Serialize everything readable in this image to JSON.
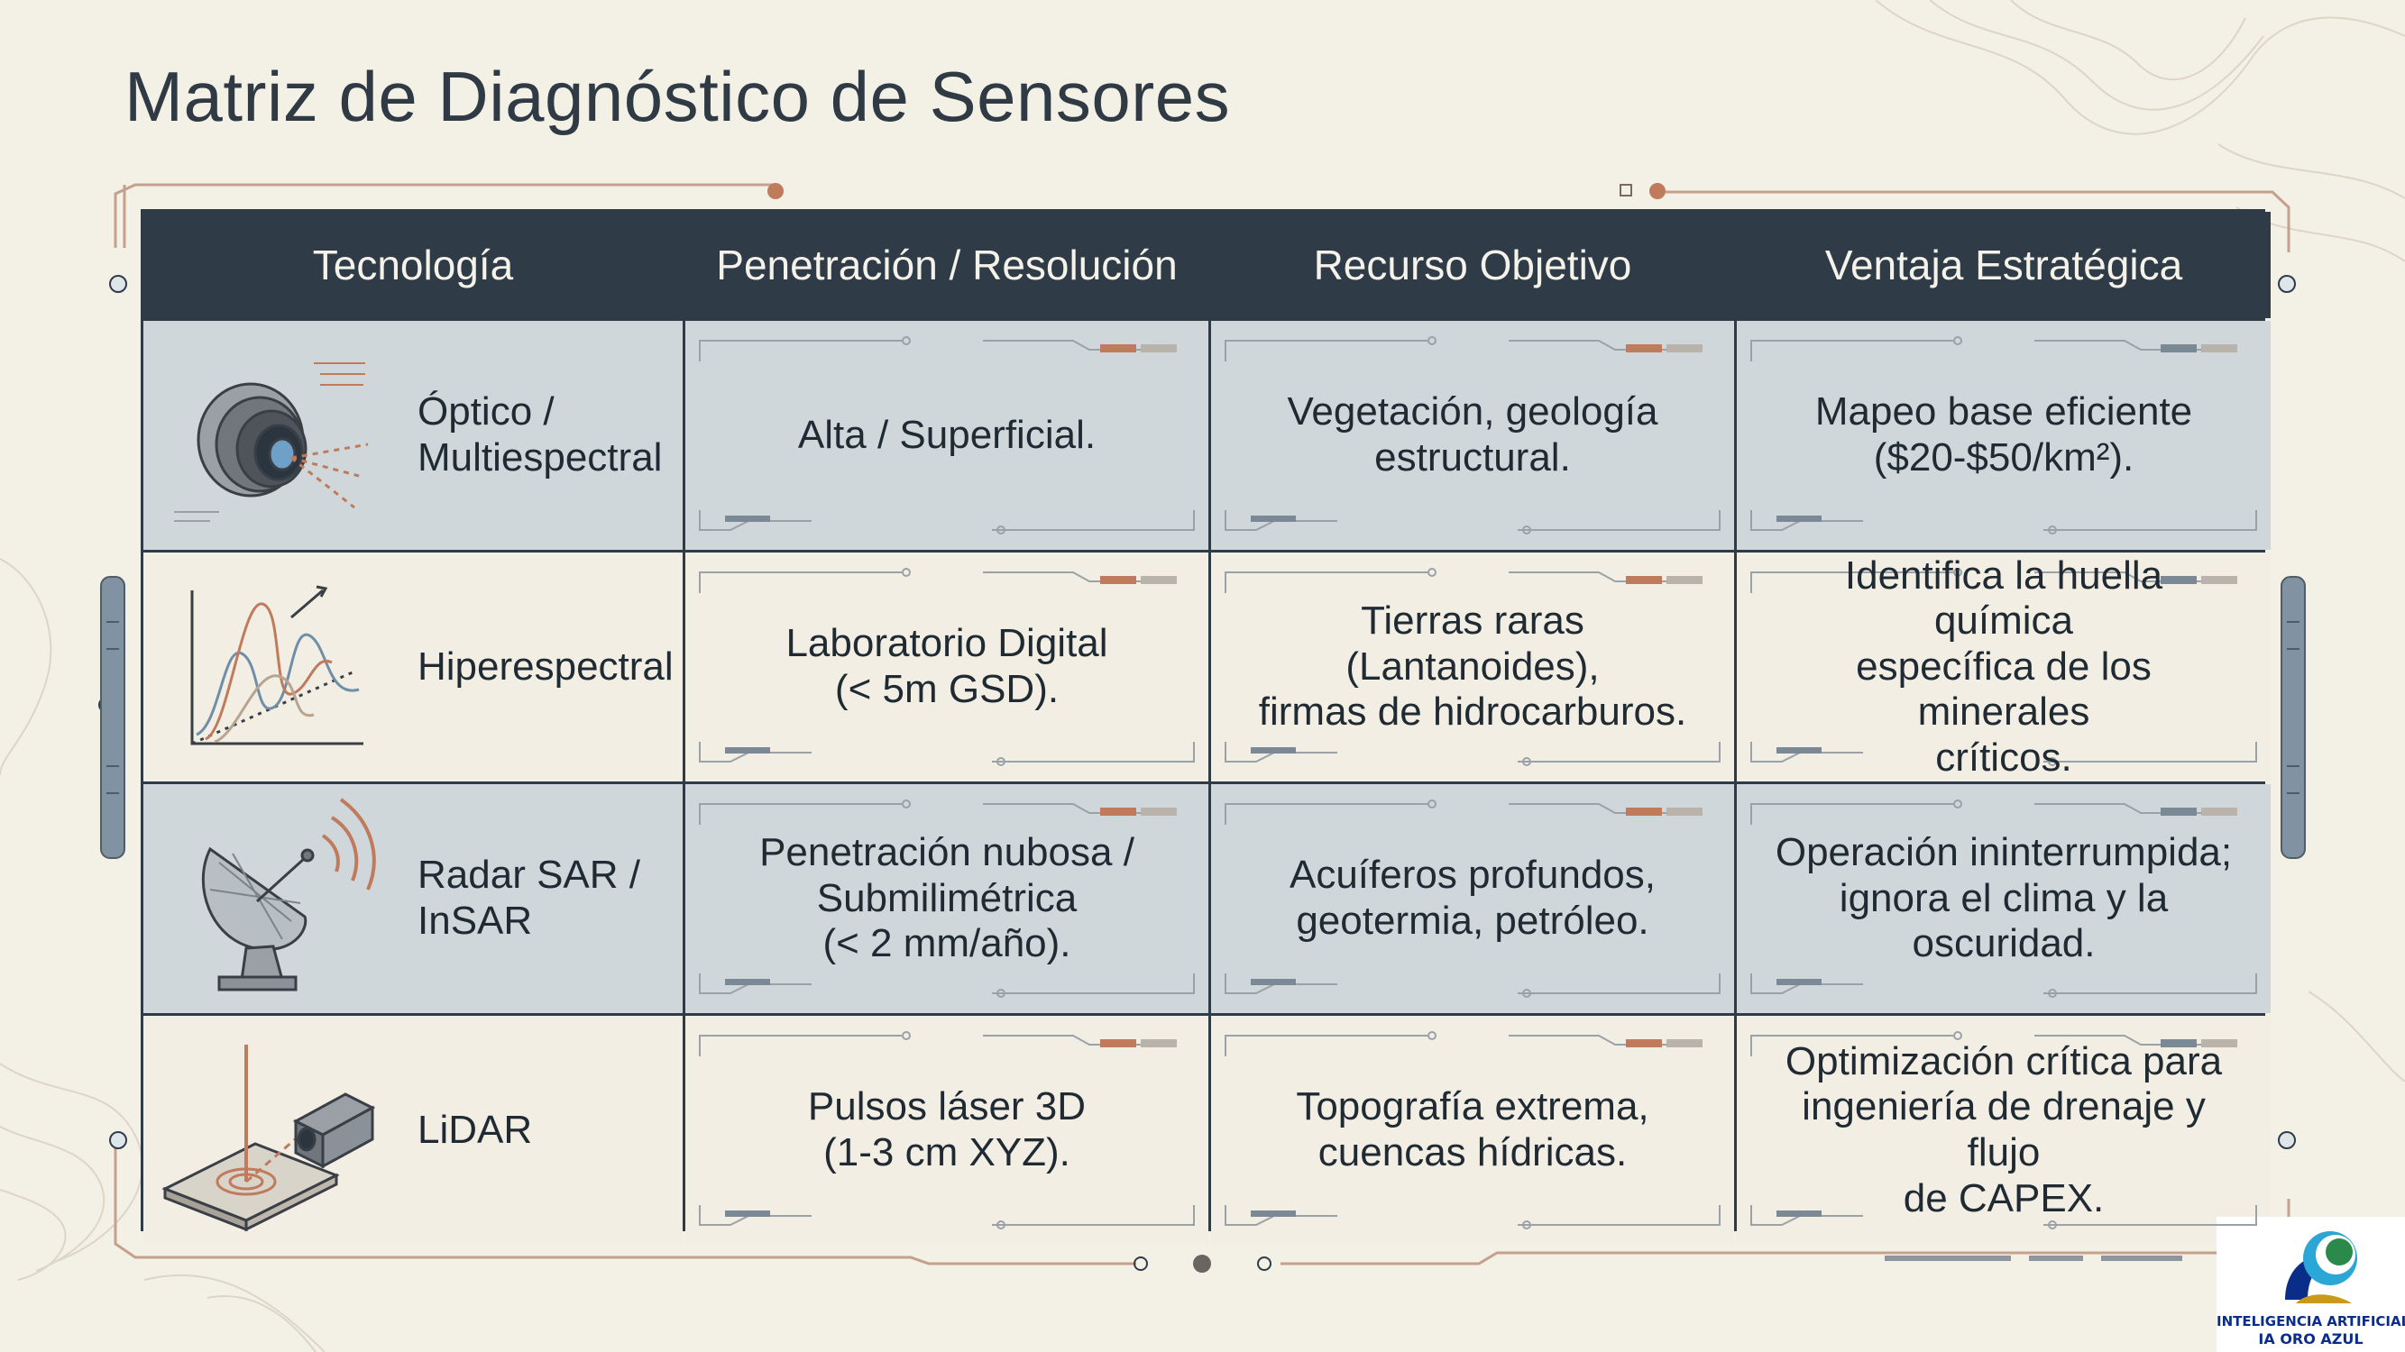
{
  "page": {
    "title": "Matriz de Diagnóstico de Sensores",
    "colors": {
      "background": "#f3f0e6",
      "header": "#2f3b46",
      "row_shaded": "#cfd7db",
      "row_light": "#f2eee4",
      "accent": "#c07a5c"
    }
  },
  "table": {
    "headers": [
      "Tecnología",
      "Penetración / Resolución",
      "Recurso Objetivo",
      "Ventaja Estratégica"
    ],
    "rows": [
      {
        "icon": "camera-icon",
        "tech": "Óptico /\nMultiespectral",
        "resolution": "Alta / Superficial.",
        "resource": "Vegetación, geología\nestructural.",
        "advantage": "Mapeo base eficiente\n($20-$50/km²)."
      },
      {
        "icon": "spectrum-chart-icon",
        "tech": "Hiperespectral",
        "resolution": "Laboratorio Digital\n(< 5m GSD).",
        "resource": "Tierras raras (Lantanoides),\nfirmas de hidrocarburos.",
        "advantage": "Identifica la huella química\nespecífica de los minerales\ncríticos."
      },
      {
        "icon": "radar-dish-icon",
        "tech": "Radar SAR /\nInSAR",
        "resolution": "Penetración nubosa /\nSubmilimétrica\n(< 2 mm/año).",
        "resource": "Acuíferos profundos,\ngeotermia, petróleo.",
        "advantage": "Operación ininterrumpida;\nignora el clima y la\noscuridad."
      },
      {
        "icon": "lidar-scanner-icon",
        "tech": "LiDAR",
        "resolution": "Pulsos láser 3D\n(1-3 cm XYZ).",
        "resource": "Topografía extrema,\ncuencas hídricas.",
        "advantage": "Optimización crítica para\ningeniería de drenaje y flujo\nde CAPEX."
      }
    ]
  },
  "logo": {
    "icon": "ia-oro-azul-logo-icon",
    "line1": "INTELIGENCIA ARTIFICIAL",
    "line2": "IA ORO AZUL"
  }
}
